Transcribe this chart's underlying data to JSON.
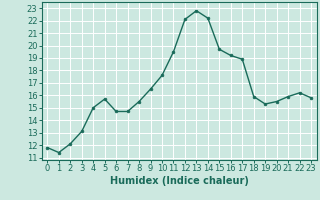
{
  "x": [
    0,
    1,
    2,
    3,
    4,
    5,
    6,
    7,
    8,
    9,
    10,
    11,
    12,
    13,
    14,
    15,
    16,
    17,
    18,
    19,
    20,
    21,
    22,
    23
  ],
  "y": [
    11.8,
    11.4,
    12.1,
    13.1,
    15.0,
    15.7,
    14.7,
    14.7,
    15.5,
    16.5,
    17.6,
    19.5,
    22.1,
    22.8,
    22.2,
    19.7,
    19.2,
    18.9,
    15.9,
    15.3,
    15.5,
    15.9,
    16.2,
    15.8
  ],
  "line_color": "#1a6b5a",
  "marker": "o",
  "markersize": 2.0,
  "linewidth": 1.0,
  "xlabel": "Humidex (Indice chaleur)",
  "xlabel_fontsize": 7,
  "ylabel_ticks": [
    11,
    12,
    13,
    14,
    15,
    16,
    17,
    18,
    19,
    20,
    21,
    22,
    23
  ],
  "xlim": [
    -0.5,
    23.5
  ],
  "ylim": [
    10.8,
    23.5
  ],
  "bg_color": "#cce8e0",
  "grid_color": "#ffffff",
  "tick_fontsize": 6,
  "spine_color": "#1a6b5a"
}
